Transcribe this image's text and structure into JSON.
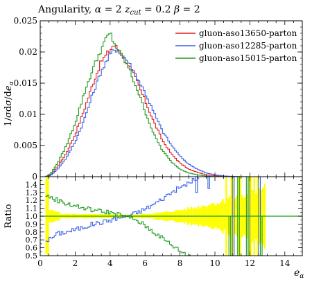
{
  "title": "Angularity, α = 2 z_cut = 0.2 β = 2",
  "title_parts": {
    "main": "Angularity, ",
    "alpha": "α",
    "eq_alpha": " = 2 ",
    "z": "z",
    "z_sub": "cut",
    "eq_z": " = 0.2 ",
    "beta": "β",
    "eq_beta": " = 2"
  },
  "ylabel": "1 / σ dσ / de_α",
  "ylabel_parts": {
    "a": "1/",
    "sigma1": "σ",
    "b": "d",
    "sigma2": "σ",
    "c": "/d",
    "e": "e",
    "sub": "α"
  },
  "xlabel": "e_α",
  "xlabel_parts": {
    "e": "e",
    "sub": "α"
  },
  "ratio_label": "Ratio",
  "colors": {
    "red": "#e41a1c",
    "blue": "#3860e8",
    "green": "#1f9a1f",
    "band": "#ffff00",
    "axis": "#000000"
  },
  "chart_data": {
    "type": "line",
    "subtype": "step-histogram-with-ratio-panel",
    "main": {
      "xlim": [
        0,
        15
      ],
      "ylim": [
        0,
        0.025
      ],
      "x_ticks": [
        "0",
        "2",
        "4",
        "6",
        "8",
        "10",
        "12",
        "14"
      ],
      "y_ticks": [
        "0",
        "0.005",
        "0.01",
        "0.015",
        "0.02",
        "0.025"
      ],
      "y_tick_values": [
        0,
        0.005,
        0.01,
        0.015,
        0.02,
        0.025
      ]
    },
    "legend_position": "top-right",
    "series": [
      {
        "name": "gluon-aso13650-parton",
        "color": "#e41a1c",
        "points": [
          [
            0,
            0
          ],
          [
            0.3,
            0
          ],
          [
            0.6,
            0.0003
          ],
          [
            1.0,
            0.0016
          ],
          [
            1.5,
            0.0038
          ],
          [
            2.0,
            0.0068
          ],
          [
            2.5,
            0.0106
          ],
          [
            3.0,
            0.0148
          ],
          [
            3.5,
            0.0185
          ],
          [
            4.0,
            0.0203
          ],
          [
            4.2,
            0.0212
          ],
          [
            4.5,
            0.0203
          ],
          [
            5.0,
            0.0183
          ],
          [
            5.5,
            0.0155
          ],
          [
            6.0,
            0.0122
          ],
          [
            6.5,
            0.0088
          ],
          [
            7.0,
            0.0058
          ],
          [
            7.5,
            0.0037
          ],
          [
            8.0,
            0.0022
          ],
          [
            8.5,
            0.0012
          ],
          [
            9.0,
            0.0007
          ],
          [
            9.5,
            0.0003
          ],
          [
            10.0,
            0.00015
          ],
          [
            10.5,
            5e-05
          ],
          [
            11.0,
            0
          ]
        ]
      },
      {
        "name": "gluon-aso12285-parton",
        "color": "#3860e8",
        "points": [
          [
            0,
            0
          ],
          [
            0.3,
            0
          ],
          [
            0.6,
            0.0002
          ],
          [
            1.0,
            0.0012
          ],
          [
            1.5,
            0.003
          ],
          [
            2.0,
            0.0056
          ],
          [
            2.5,
            0.009
          ],
          [
            3.0,
            0.0132
          ],
          [
            3.5,
            0.017
          ],
          [
            4.0,
            0.0195
          ],
          [
            4.3,
            0.0205
          ],
          [
            4.5,
            0.0202
          ],
          [
            5.0,
            0.0186
          ],
          [
            5.5,
            0.0162
          ],
          [
            6.0,
            0.0135
          ],
          [
            6.5,
            0.0103
          ],
          [
            7.0,
            0.0073
          ],
          [
            7.5,
            0.0051
          ],
          [
            8.0,
            0.0033
          ],
          [
            8.5,
            0.002
          ],
          [
            9.0,
            0.0012
          ],
          [
            9.5,
            0.0006
          ],
          [
            10.0,
            0.0003
          ],
          [
            10.5,
            0.00012
          ],
          [
            11.0,
            5e-05
          ],
          [
            11.5,
            1e-05
          ],
          [
            12.0,
            0
          ]
        ]
      },
      {
        "name": "gluon-aso15015-parton",
        "color": "#1f9a1f",
        "points": [
          [
            0,
            0
          ],
          [
            0.3,
            0
          ],
          [
            0.6,
            0.0005
          ],
          [
            1.0,
            0.0022
          ],
          [
            1.5,
            0.005
          ],
          [
            2.0,
            0.0086
          ],
          [
            2.5,
            0.0132
          ],
          [
            3.0,
            0.0172
          ],
          [
            3.5,
            0.0205
          ],
          [
            3.8,
            0.0222
          ],
          [
            4.0,
            0.023
          ],
          [
            4.3,
            0.021
          ],
          [
            5.0,
            0.0178
          ],
          [
            5.5,
            0.0144
          ],
          [
            6.0,
            0.0105
          ],
          [
            6.5,
            0.0068
          ],
          [
            7.0,
            0.0042
          ],
          [
            7.5,
            0.0024
          ],
          [
            8.0,
            0.0012
          ],
          [
            8.5,
            0.0006
          ],
          [
            9.0,
            0.0003
          ],
          [
            9.5,
            0.0001
          ],
          [
            10.0,
            0
          ]
        ]
      }
    ],
    "ratio": {
      "ylabel": "Ratio",
      "ylim": [
        0.5,
        1.5
      ],
      "y_ticks": [
        "0.5",
        "0.6",
        "0.7",
        "0.8",
        "0.9",
        "1.0",
        "1.1",
        "1.2",
        "1.3",
        "1.4"
      ],
      "y_tick_values": [
        0.5,
        0.6,
        0.7,
        0.8,
        0.9,
        1.0,
        1.1,
        1.2,
        1.3,
        1.4
      ],
      "reference_series": "gluon-aso13650-parton",
      "uncertainty_band_color": "#ffff00",
      "series": [
        {
          "name": "gluon-aso12285-parton",
          "color": "#3860e8",
          "points": [
            [
              0.5,
              0.7
            ],
            [
              1.0,
              0.78
            ],
            [
              1.5,
              0.8
            ],
            [
              2.0,
              0.83
            ],
            [
              2.5,
              0.86
            ],
            [
              3.0,
              0.9
            ],
            [
              3.5,
              0.92
            ],
            [
              4.0,
              0.95
            ],
            [
              4.5,
              0.98
            ],
            [
              5.0,
              1.0
            ],
            [
              5.5,
              1.04
            ],
            [
              6.0,
              1.09
            ],
            [
              6.5,
              1.15
            ],
            [
              7.0,
              1.22
            ],
            [
              7.5,
              1.3
            ],
            [
              8.0,
              1.36
            ],
            [
              8.5,
              1.42
            ],
            [
              9.0,
              1.48
            ]
          ]
        },
        {
          "name": "gluon-aso15015-parton",
          "color": "#1f9a1f",
          "points": [
            [
              0.5,
              1.25
            ],
            [
              1.0,
              1.2
            ],
            [
              1.5,
              1.16
            ],
            [
              2.0,
              1.13
            ],
            [
              2.5,
              1.1
            ],
            [
              3.0,
              1.08
            ],
            [
              3.5,
              1.06
            ],
            [
              4.0,
              1.05
            ],
            [
              4.5,
              1.02
            ],
            [
              5.0,
              0.99
            ],
            [
              5.5,
              0.95
            ],
            [
              6.0,
              0.88
            ],
            [
              6.5,
              0.8
            ],
            [
              7.0,
              0.72
            ],
            [
              7.5,
              0.64
            ],
            [
              8.0,
              0.56
            ],
            [
              8.5,
              0.5
            ]
          ]
        }
      ]
    }
  }
}
